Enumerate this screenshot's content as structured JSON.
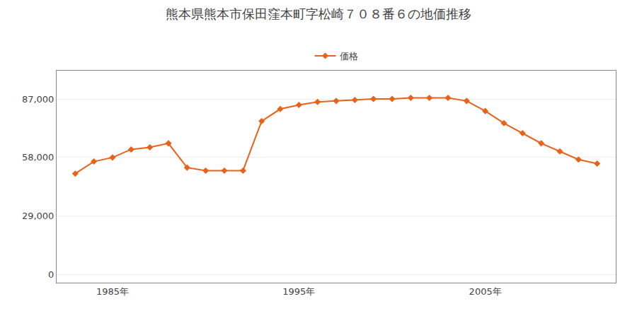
{
  "chart_data": {
    "type": "line",
    "title": "熊本県熊本市保田窪本町字松崎７０８番６の地価推移",
    "x": [
      1983,
      1984,
      1985,
      1986,
      1987,
      1988,
      1989,
      1990,
      1991,
      1992,
      1993,
      1994,
      1995,
      1996,
      1997,
      1998,
      1999,
      2000,
      2001,
      2002,
      2003,
      2004,
      2005,
      2006,
      2007,
      2008,
      2009,
      2010,
      2011
    ],
    "series": [
      {
        "name": "価格",
        "color": "#E8621A",
        "marker": "diamond",
        "values": [
          50000,
          56000,
          58000,
          62000,
          63000,
          65000,
          53000,
          51500,
          51500,
          51500,
          76000,
          82000,
          84000,
          85500,
          86000,
          86500,
          87000,
          87000,
          87500,
          87500,
          87500,
          86000,
          81000,
          75000,
          70000,
          65000,
          61000,
          57000,
          55000
        ]
      }
    ],
    "xlim": [
      1982,
      2012
    ],
    "xticks": [
      {
        "value": 1985,
        "label": "1985年"
      },
      {
        "value": 1995,
        "label": "1995年"
      },
      {
        "value": 2005,
        "label": "2005年"
      }
    ],
    "ylim": [
      -4000,
      101000
    ],
    "yticks": [
      0,
      {
        "value": 29000,
        "label": "29,000"
      },
      {
        "value": 58000,
        "label": "58,000"
      },
      {
        "value": 87000,
        "label": "87,000"
      }
    ],
    "grid": "y",
    "legend": "top"
  }
}
